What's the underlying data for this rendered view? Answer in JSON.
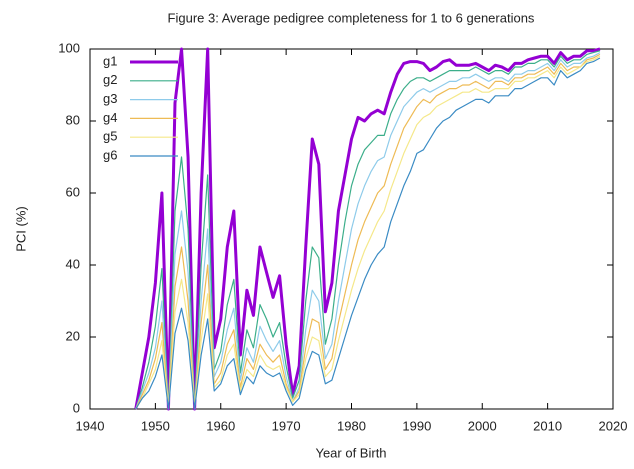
{
  "chart_data": {
    "type": "line",
    "title": "Figure 3: Average pedigree completeness for 1 to 6 generations",
    "x_label": "Year of Birth",
    "y_label": "PCI (%)",
    "xlim": [
      1940,
      2020
    ],
    "xticks": [
      1940,
      1950,
      1960,
      1970,
      1980,
      1990,
      2000,
      2010,
      2020
    ],
    "ylim": [
      0,
      100
    ],
    "yticks": [
      0,
      20,
      40,
      60,
      80,
      100
    ],
    "legend": "top-left",
    "grid": false,
    "x": [
      1947,
      1948,
      1949,
      1950,
      1951,
      1952,
      1953,
      1954,
      1955,
      1956,
      1957,
      1958,
      1959,
      1960,
      1961,
      1962,
      1963,
      1964,
      1965,
      1966,
      1967,
      1968,
      1969,
      1970,
      1971,
      1972,
      1973,
      1974,
      1975,
      1976,
      1977,
      1978,
      1979,
      1980,
      1981,
      1982,
      1983,
      1984,
      1985,
      1986,
      1987,
      1988,
      1989,
      1990,
      1991,
      1992,
      1993,
      1994,
      1995,
      1996,
      1997,
      1998,
      1999,
      2000,
      2001,
      2002,
      2003,
      2004,
      2005,
      2006,
      2007,
      2008,
      2009,
      2010,
      2011,
      2012,
      2013,
      2014,
      2015,
      2016,
      2017,
      2018
    ],
    "series": [
      {
        "name": "g1",
        "color": "#9400d3",
        "values": [
          0,
          10,
          20,
          35,
          60,
          0,
          85,
          100,
          70,
          0,
          60,
          100,
          17,
          25,
          45,
          55,
          15,
          33,
          26,
          45,
          38,
          31,
          37,
          18,
          4,
          12,
          45,
          75,
          68,
          27,
          35,
          55,
          65,
          75,
          81,
          80,
          82,
          83,
          82,
          88,
          93,
          96,
          96.5,
          96.5,
          96,
          94,
          95,
          96.5,
          97,
          95.5,
          95.5,
          95.5,
          96,
          95,
          94,
          95.5,
          95,
          94,
          96,
          96,
          97,
          97.5,
          98,
          98,
          96,
          99,
          97,
          98,
          98,
          99.5,
          99.5,
          100
        ]
      },
      {
        "name": "g2",
        "color": "#3cae8a",
        "values": [
          0,
          6,
          13,
          23,
          39,
          0,
          55,
          70,
          50,
          0,
          40,
          65,
          11,
          16,
          29,
          36,
          10,
          22,
          17,
          29,
          25,
          20,
          24,
          12,
          3,
          8,
          30,
          45,
          42,
          18,
          25,
          40,
          52,
          62,
          68,
          72,
          74,
          76,
          76,
          82,
          86,
          89,
          91,
          92,
          92,
          91,
          92,
          93,
          94,
          94,
          94,
          94,
          95,
          94,
          93,
          94,
          94,
          93,
          95,
          95,
          96,
          96,
          97,
          97,
          95,
          98,
          96,
          97,
          97,
          98.5,
          99,
          99.5
        ]
      },
      {
        "name": "g3",
        "color": "#8ecbea",
        "values": [
          0,
          5,
          10,
          17,
          30,
          0,
          43,
          55,
          38,
          0,
          30,
          50,
          9,
          13,
          22,
          28,
          8,
          17,
          13,
          23,
          19,
          16,
          19,
          9,
          2,
          6,
          22,
          33,
          30,
          14,
          18,
          30,
          40,
          50,
          57,
          62,
          66,
          69,
          70,
          76,
          80,
          84,
          86,
          88,
          89,
          88,
          89,
          90,
          91,
          91,
          92,
          92,
          93,
          92,
          91,
          92,
          92,
          91,
          93,
          93,
          94,
          94,
          95,
          96,
          94,
          97,
          95,
          96,
          96,
          97.5,
          98,
          99
        ]
      },
      {
        "name": "g4",
        "color": "#eebb55",
        "values": [
          0,
          4,
          8,
          14,
          24,
          0,
          34,
          45,
          30,
          0,
          24,
          40,
          7,
          10,
          18,
          22,
          6,
          14,
          11,
          18,
          15,
          13,
          15,
          7,
          2,
          5,
          17,
          25,
          24,
          11,
          14,
          24,
          32,
          40,
          47,
          52,
          56,
          60,
          62,
          68,
          73,
          78,
          81,
          84,
          86,
          85,
          87,
          88,
          89,
          89,
          90,
          90,
          91,
          90,
          89,
          91,
          91,
          90,
          92,
          92,
          93,
          93,
          94,
          95,
          93,
          96,
          94,
          95,
          95,
          97,
          97.5,
          98.5
        ]
      },
      {
        "name": "g5",
        "color": "#f5e88a",
        "values": [
          0,
          3,
          7,
          11,
          19,
          0,
          27,
          36,
          24,
          0,
          19,
          32,
          6,
          8,
          15,
          18,
          5,
          11,
          9,
          15,
          12,
          11,
          12,
          6,
          2,
          4,
          14,
          20,
          19,
          9,
          11,
          19,
          26,
          33,
          39,
          44,
          48,
          52,
          55,
          61,
          66,
          71,
          75,
          79,
          81,
          82,
          84,
          85,
          86,
          87,
          88,
          88,
          89,
          88,
          88,
          89,
          89,
          89,
          91,
          91,
          92,
          92,
          93,
          94,
          92,
          95,
          93,
          94,
          95,
          96.5,
          97,
          98
        ]
      },
      {
        "name": "g6",
        "color": "#3a8bc4",
        "values": [
          0,
          3,
          5,
          9,
          15,
          0,
          21,
          28,
          19,
          0,
          15,
          25,
          5,
          7,
          12,
          14,
          4,
          9,
          7,
          12,
          10,
          9,
          10,
          5,
          1,
          3,
          11,
          16,
          15,
          7,
          8,
          14,
          20,
          26,
          31,
          36,
          40,
          43,
          45,
          52,
          57,
          62,
          66,
          71,
          72,
          75,
          78,
          80,
          81,
          83,
          84,
          85,
          86,
          86,
          85,
          87,
          87,
          87,
          89,
          89,
          90,
          91,
          92,
          92,
          90,
          94,
          92,
          93,
          94,
          96,
          96.5,
          97.5
        ]
      }
    ]
  }
}
